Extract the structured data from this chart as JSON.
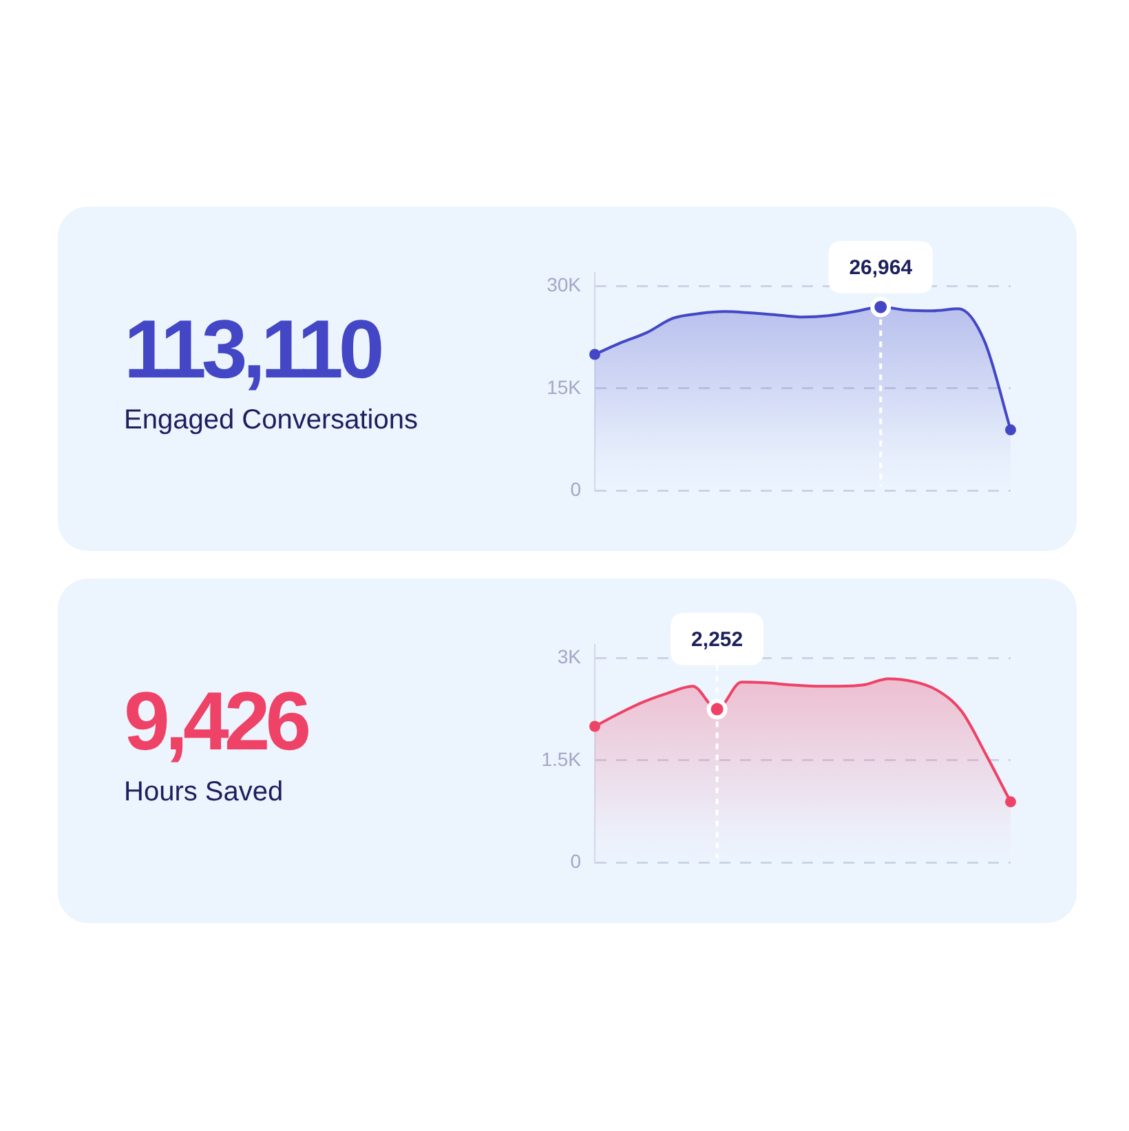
{
  "chart_data": [
    {
      "type": "other",
      "title": "113,110",
      "subtitle": "Engaged Conversations"
    },
    {
      "type": "area",
      "categories": [
        null,
        null,
        null,
        null,
        null,
        null,
        null,
        null,
        null,
        null,
        null,
        null,
        null,
        null,
        null,
        null,
        null
      ],
      "series": [
        {
          "color": "#4347c5",
          "values": [
            20000,
            21700,
            23200,
            25300,
            26000,
            26300,
            26100,
            25800,
            25500,
            25700,
            26300,
            26964,
            26500,
            26400,
            26700,
            21900,
            8900
          ],
          "value_labels": [
            null,
            null,
            null,
            null,
            null,
            null,
            null,
            null,
            null,
            null,
            null,
            "26,964",
            null,
            null,
            null,
            null,
            null
          ]
        }
      ],
      "ylim": [
        0,
        32000
      ],
      "yticks": [
        0,
        {
          "value": 15000,
          "label": "15K"
        },
        {
          "value": 30000,
          "label": "30K"
        }
      ],
      "grid": "y"
    },
    {
      "type": "other",
      "title": "9,426",
      "subtitle": "Hours Saved"
    },
    {
      "type": "area",
      "categories": [
        null,
        null,
        null,
        null,
        null,
        null,
        null,
        null,
        null,
        null,
        null,
        null,
        null,
        null,
        null,
        null,
        null,
        null
      ],
      "series": [
        {
          "color": "#ee4266",
          "values": [
            2000,
            2190,
            2360,
            2490,
            2590,
            2252,
            2650,
            2640,
            2610,
            2590,
            2590,
            2610,
            2700,
            2660,
            2530,
            2220,
            1580,
            890
          ],
          "value_labels": [
            null,
            null,
            null,
            null,
            null,
            "2,252",
            null,
            null,
            null,
            null,
            null,
            null,
            null,
            null,
            null,
            null,
            null,
            null
          ]
        }
      ],
      "ylim": [
        0,
        3200
      ],
      "yticks": [
        0,
        {
          "value": 1500,
          "label": "1.5K"
        },
        {
          "value": 3000,
          "label": "3K"
        }
      ],
      "grid": "y"
    }
  ]
}
